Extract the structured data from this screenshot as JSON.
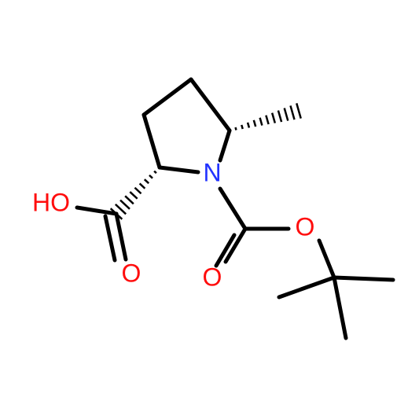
{
  "atoms": [
    {
      "label": "HO"
    },
    {
      "label": "O"
    },
    {
      "label": "N"
    },
    {
      "label": "O"
    },
    {
      "label": "O"
    }
  ]
}
